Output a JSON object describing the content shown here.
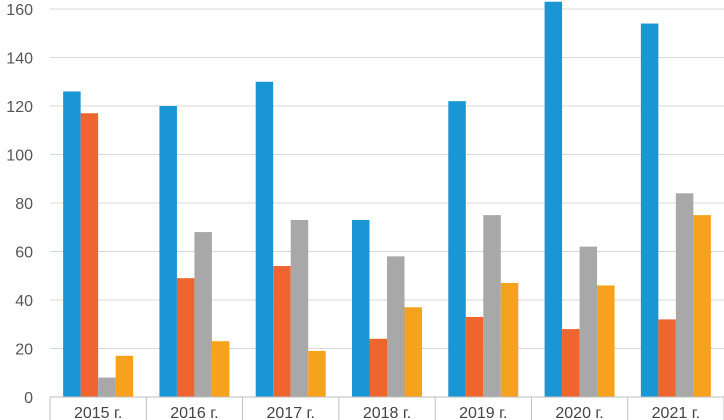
{
  "chart_data": {
    "type": "bar",
    "categories": [
      "2015 г.",
      "2016 г.",
      "2017 г.",
      "2018 г.",
      "2019 г.",
      "2020 г.",
      "2021 г."
    ],
    "series": [
      {
        "color": "#1a96d4",
        "values": [
          126,
          120,
          130,
          73,
          122,
          163,
          154
        ]
      },
      {
        "color": "#ee6530",
        "values": [
          117,
          49,
          54,
          24,
          33,
          28,
          32
        ]
      },
      {
        "color": "#a8a8a8",
        "values": [
          8,
          68,
          73,
          58,
          75,
          62,
          84
        ]
      },
      {
        "color": "#f7a21c",
        "values": [
          17,
          23,
          19,
          37,
          47,
          46,
          75
        ]
      }
    ],
    "yticks": [
      0,
      20,
      40,
      60,
      80,
      100,
      120,
      140,
      160
    ],
    "ylim": [
      0,
      163
    ],
    "grid": true,
    "legend": "none"
  }
}
